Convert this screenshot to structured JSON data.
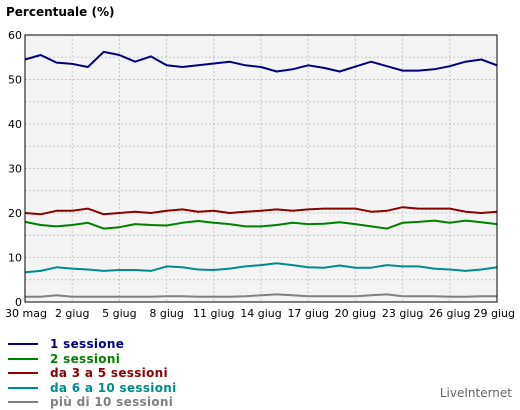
{
  "chart_data": {
    "type": "line",
    "ylabel": "Percentuale (%)",
    "ylim": [
      0,
      60
    ],
    "yticks": [
      "0",
      "10",
      "20",
      "30",
      "40",
      "50",
      "60"
    ],
    "x_categories": [
      "30 mag",
      "31 mag",
      "1 giu",
      "2 giu",
      "3 giu",
      "4 giu",
      "5 giu",
      "6 giu",
      "7 giu",
      "8 giu",
      "9 giu",
      "10 giu",
      "11 giu",
      "12 giu",
      "13 giu",
      "14 giu",
      "15 giu",
      "16 giu",
      "17 giu",
      "18 giu",
      "19 giu",
      "20 giu",
      "21 giu",
      "22 giu",
      "23 giu",
      "24 giu",
      "25 giu",
      "26 giu",
      "27 giu",
      "28 giu",
      "29 giu"
    ],
    "xtick_labels": [
      "30 mag",
      "2 giug",
      "5 giug",
      "8 giug",
      "11 giug",
      "14 giug",
      "17 giug",
      "20 giug",
      "23 giug",
      "26 giug",
      "29 giug"
    ],
    "xtick_indices": [
      0,
      3,
      6,
      9,
      12,
      15,
      18,
      21,
      24,
      27,
      30
    ],
    "grid": true,
    "legend_position": "bottom-left",
    "series": [
      {
        "name": "1 sessione",
        "color": "#000080",
        "values": [
          54.5,
          55.5,
          53.8,
          53.5,
          52.8,
          56.2,
          55.5,
          54.0,
          55.2,
          53.2,
          52.8,
          53.2,
          53.6,
          54.0,
          53.2,
          52.8,
          51.8,
          52.3,
          53.2,
          52.6,
          51.8,
          52.9,
          54.0,
          53.0,
          52.0,
          52.0,
          52.3,
          53.0,
          54.0,
          54.5,
          53.2
        ]
      },
      {
        "name": "2 sessioni",
        "color": "#008000",
        "values": [
          18.0,
          17.3,
          17.0,
          17.3,
          17.8,
          16.5,
          16.8,
          17.5,
          17.3,
          17.2,
          17.8,
          18.2,
          17.8,
          17.5,
          17.0,
          17.0,
          17.3,
          17.8,
          17.5,
          17.6,
          17.9,
          17.5,
          17.0,
          16.5,
          17.8,
          18.0,
          18.3,
          17.8,
          18.3,
          17.9,
          17.5
        ]
      },
      {
        "name": "da 3 a 5 sessioni",
        "color": "#8b0000",
        "values": [
          20.0,
          19.7,
          20.5,
          20.5,
          21.0,
          19.7,
          20.0,
          20.3,
          20.0,
          20.5,
          20.8,
          20.3,
          20.5,
          20.0,
          20.3,
          20.5,
          20.8,
          20.5,
          20.8,
          21.0,
          21.0,
          21.0,
          20.3,
          20.5,
          21.3,
          21.0,
          21.0,
          21.0,
          20.3,
          20.0,
          20.3
        ]
      },
      {
        "name": "da 6 a 10 sessioni",
        "color": "#008b8b",
        "values": [
          6.7,
          7.0,
          7.8,
          7.5,
          7.3,
          7.0,
          7.2,
          7.2,
          7.0,
          8.0,
          7.8,
          7.3,
          7.2,
          7.5,
          8.0,
          8.3,
          8.7,
          8.3,
          7.8,
          7.7,
          8.2,
          7.7,
          7.7,
          8.3,
          8.0,
          8.0,
          7.5,
          7.3,
          7.0,
          7.3,
          7.8
        ]
      },
      {
        "name": "più di 10 sessioni",
        "color": "#808080",
        "values": [
          1.2,
          1.2,
          1.5,
          1.2,
          1.2,
          1.2,
          1.2,
          1.2,
          1.2,
          1.3,
          1.3,
          1.2,
          1.2,
          1.2,
          1.3,
          1.5,
          1.7,
          1.5,
          1.3,
          1.3,
          1.3,
          1.3,
          1.5,
          1.7,
          1.3,
          1.3,
          1.3,
          1.2,
          1.2,
          1.3,
          1.3
        ]
      }
    ]
  },
  "footer": {
    "brand": "LiveInternet"
  }
}
